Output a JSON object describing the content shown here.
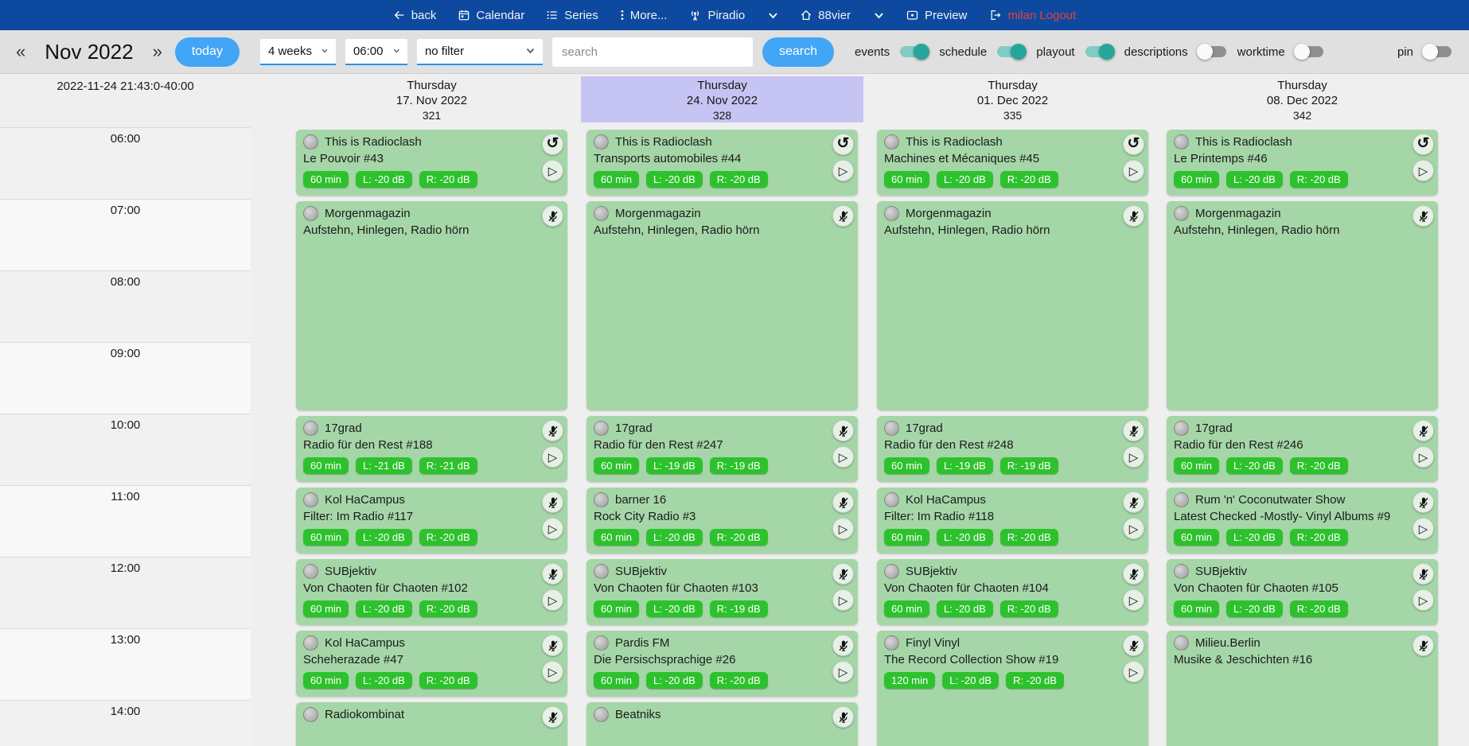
{
  "navbar": {
    "back": "back",
    "calendar": "Calendar",
    "series": "Series",
    "more": "More...",
    "piradio": "Piradio",
    "station": "88vier",
    "preview": "Preview",
    "logout": "milan Logout"
  },
  "toolbar": {
    "prev_arrow": "«",
    "month": "Nov 2022",
    "next_arrow": "»",
    "today_button": "today",
    "range_select": "4 weeks",
    "time_select": "06:00",
    "filter_select": "no filter",
    "search_placeholder": "search",
    "search_button": "search",
    "toggles": [
      {
        "label": "events",
        "on": true
      },
      {
        "label": "schedule",
        "on": true
      },
      {
        "label": "playout",
        "on": true
      },
      {
        "label": "descriptions",
        "on": false
      },
      {
        "label": "worktime",
        "on": false
      }
    ],
    "pin": {
      "label": "pin",
      "on": false
    }
  },
  "colors": {
    "navbar_bg": "#0d4a9f",
    "logout_red": "#e5413d",
    "accent_blue": "#42a5f5",
    "select_underline": "#2196f3",
    "toggle_on_knob": "#26a69a",
    "toggle_on_track": "#80cbc4",
    "day_highlight": "#c6c4f3",
    "event_green": "#a5d6a7",
    "badge_green": "#2dc22d"
  },
  "calendar": {
    "timestamp": "2022-11-24 21:43:0-40:00",
    "hours": [
      "06:00",
      "07:00",
      "08:00",
      "09:00",
      "10:00",
      "11:00",
      "12:00",
      "13:00",
      "14:00"
    ],
    "days": [
      {
        "weekday": "Thursday",
        "date": "17. Nov 2022",
        "day_number": "321",
        "highlighted": false,
        "events": [
          {
            "show": "This is Radioclash",
            "episode": "Le Pouvoir #43",
            "start": 0,
            "hours": 1,
            "badges": [
              "60 min",
              "L: -20 dB",
              "R: -20 dB"
            ],
            "status_icon": "replay",
            "play": true
          },
          {
            "show": "Morgenmagazin",
            "episode": "Aufstehn, Hinlegen, Radio hörn",
            "start": 1,
            "hours": 3,
            "badges": [],
            "status_icon": "mic-off",
            "play": false
          },
          {
            "show": "17grad",
            "episode": "Radio für den Rest #188",
            "start": 4,
            "hours": 1,
            "badges": [
              "60 min",
              "L: -21 dB",
              "R: -21 dB"
            ],
            "status_icon": "mic-off",
            "play": true
          },
          {
            "show": "Kol HaCampus",
            "episode": "Filter: Im Radio #117",
            "start": 5,
            "hours": 1,
            "badges": [
              "60 min",
              "L: -20 dB",
              "R: -20 dB"
            ],
            "status_icon": "mic-off",
            "play": true
          },
          {
            "show": "SUBjektiv",
            "episode": "Von Chaoten für Chaoten #102",
            "start": 6,
            "hours": 1,
            "badges": [
              "60 min",
              "L: -20 dB",
              "R: -20 dB"
            ],
            "status_icon": "mic-off",
            "play": true
          },
          {
            "show": "Kol HaCampus",
            "episode": "Scheherazade #47",
            "start": 7,
            "hours": 1,
            "badges": [
              "60 min",
              "L: -20 dB",
              "R: -20 dB"
            ],
            "status_icon": "mic-off",
            "play": true
          },
          {
            "show": "Radiokombinat",
            "episode": "",
            "start": 8,
            "hours": 1,
            "badges": [],
            "status_icon": "mic-off",
            "play": false
          }
        ]
      },
      {
        "weekday": "Thursday",
        "date": "24. Nov 2022",
        "day_number": "328",
        "highlighted": true,
        "events": [
          {
            "show": "This is Radioclash",
            "episode": "Transports automobiles #44",
            "start": 0,
            "hours": 1,
            "badges": [
              "60 min",
              "L: -20 dB",
              "R: -20 dB"
            ],
            "status_icon": "replay",
            "play": true
          },
          {
            "show": "Morgenmagazin",
            "episode": "Aufstehn, Hinlegen, Radio hörn",
            "start": 1,
            "hours": 3,
            "badges": [],
            "status_icon": "mic-off",
            "play": false
          },
          {
            "show": "17grad",
            "episode": "Radio für den Rest #247",
            "start": 4,
            "hours": 1,
            "badges": [
              "60 min",
              "L: -19 dB",
              "R: -19 dB"
            ],
            "status_icon": "mic-off",
            "play": true
          },
          {
            "show": "barner 16",
            "episode": "Rock City Radio #3",
            "start": 5,
            "hours": 1,
            "badges": [
              "60 min",
              "L: -20 dB",
              "R: -20 dB"
            ],
            "status_icon": "mic-off",
            "play": true
          },
          {
            "show": "SUBjektiv",
            "episode": "Von Chaoten für Chaoten #103",
            "start": 6,
            "hours": 1,
            "badges": [
              "60 min",
              "L: -20 dB",
              "R: -19 dB"
            ],
            "status_icon": "mic-off",
            "play": true
          },
          {
            "show": "Pardis FM",
            "episode": "Die Persischsprachige #26",
            "start": 7,
            "hours": 1,
            "badges": [
              "60 min",
              "L: -20 dB",
              "R: -20 dB"
            ],
            "status_icon": "mic-off",
            "play": true
          },
          {
            "show": "Beatniks",
            "episode": "",
            "start": 8,
            "hours": 1,
            "badges": [],
            "status_icon": "mic-off",
            "play": false
          }
        ]
      },
      {
        "weekday": "Thursday",
        "date": "01. Dec 2022",
        "day_number": "335",
        "highlighted": false,
        "events": [
          {
            "show": "This is Radioclash",
            "episode": "Machines et Mécaniques #45",
            "start": 0,
            "hours": 1,
            "badges": [
              "60 min",
              "L: -20 dB",
              "R: -20 dB"
            ],
            "status_icon": "replay",
            "play": true
          },
          {
            "show": "Morgenmagazin",
            "episode": "Aufstehn, Hinlegen, Radio hörn",
            "start": 1,
            "hours": 3,
            "badges": [],
            "status_icon": "mic-off",
            "play": false
          },
          {
            "show": "17grad",
            "episode": "Radio für den Rest #248",
            "start": 4,
            "hours": 1,
            "badges": [
              "60 min",
              "L: -19 dB",
              "R: -19 dB"
            ],
            "status_icon": "mic-off",
            "play": true
          },
          {
            "show": "Kol HaCampus",
            "episode": "Filter: Im Radio #118",
            "start": 5,
            "hours": 1,
            "badges": [
              "60 min",
              "L: -20 dB",
              "R: -20 dB"
            ],
            "status_icon": "mic-off",
            "play": true
          },
          {
            "show": "SUBjektiv",
            "episode": "Von Chaoten für Chaoten #104",
            "start": 6,
            "hours": 1,
            "badges": [
              "60 min",
              "L: -20 dB",
              "R: -20 dB"
            ],
            "status_icon": "mic-off",
            "play": true
          },
          {
            "show": "Finyl Vinyl",
            "episode": "The Record Collection Show #19",
            "start": 7,
            "hours": 2,
            "badges": [
              "120 min",
              "L: -20 dB",
              "R: -20 dB"
            ],
            "status_icon": "mic-off",
            "play": true
          }
        ]
      },
      {
        "weekday": "Thursday",
        "date": "08. Dec 2022",
        "day_number": "342",
        "highlighted": false,
        "events": [
          {
            "show": "This is Radioclash",
            "episode": "Le Printemps #46",
            "start": 0,
            "hours": 1,
            "badges": [
              "60 min",
              "L: -20 dB",
              "R: -20 dB"
            ],
            "status_icon": "replay",
            "play": true
          },
          {
            "show": "Morgenmagazin",
            "episode": "Aufstehn, Hinlegen, Radio hörn",
            "start": 1,
            "hours": 3,
            "badges": [],
            "status_icon": "mic-off",
            "play": false
          },
          {
            "show": "17grad",
            "episode": "Radio für den Rest #246",
            "start": 4,
            "hours": 1,
            "badges": [
              "60 min",
              "L: -20 dB",
              "R: -20 dB"
            ],
            "status_icon": "mic-off",
            "play": true
          },
          {
            "show": "Rum 'n' Coconutwater Show",
            "episode": "Latest Checked -Mostly- Vinyl Albums #9",
            "start": 5,
            "hours": 1,
            "badges": [
              "60 min",
              "L: -20 dB",
              "R: -20 dB"
            ],
            "status_icon": "mic-off",
            "play": true
          },
          {
            "show": "SUBjektiv",
            "episode": "Von Chaoten für Chaoten #105",
            "start": 6,
            "hours": 1,
            "badges": [
              "60 min",
              "L: -20 dB",
              "R: -20 dB"
            ],
            "status_icon": "mic-off",
            "play": true
          },
          {
            "show": "Milieu.Berlin",
            "episode": "Musike & Jeschichten #16",
            "start": 7,
            "hours": 2,
            "badges": [],
            "status_icon": "mic-off",
            "play": false
          }
        ]
      }
    ]
  }
}
